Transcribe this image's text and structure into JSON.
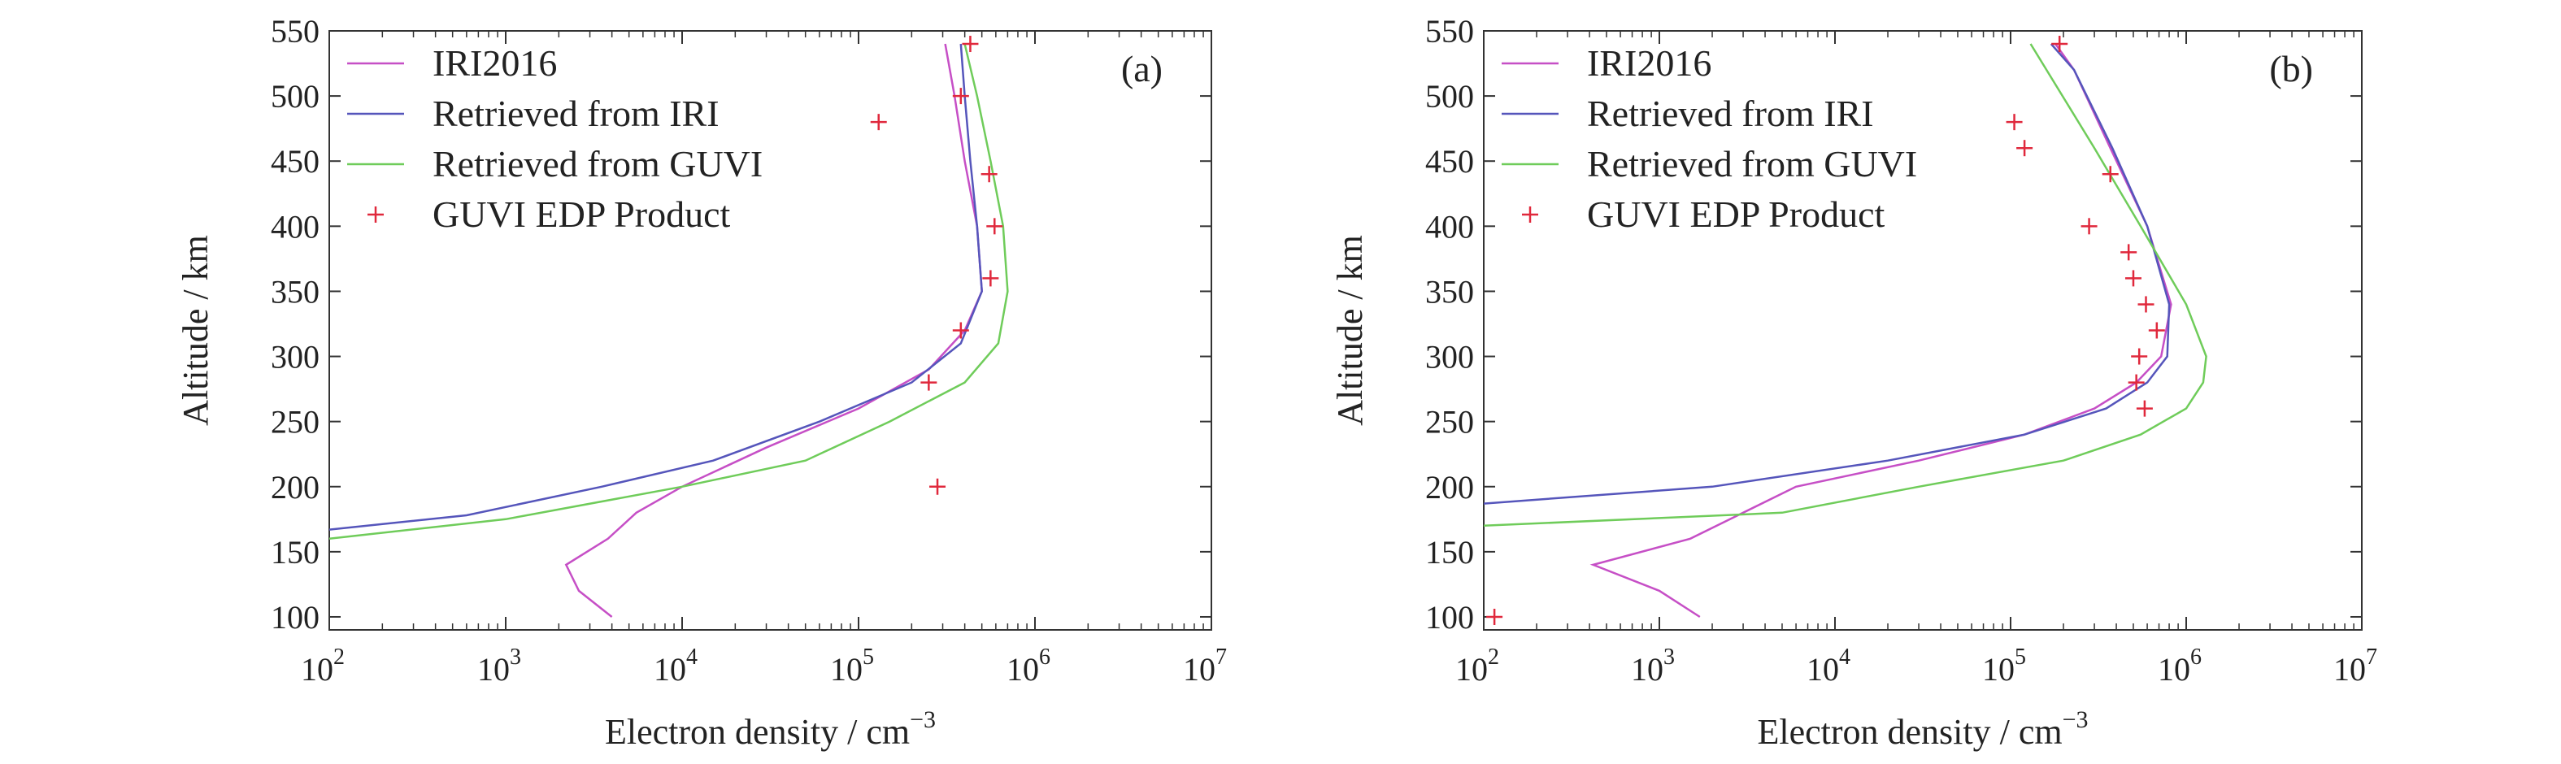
{
  "colors": {
    "iri": "#c64fc6",
    "ret_iri": "#5555bb",
    "ret_guvi": "#6fcc5a",
    "guvi_edp": "#e0283c",
    "axis": "#333333"
  },
  "chart_data": [
    {
      "type": "line",
      "panel_label": "(a)",
      "xlabel": "Electron density / cm",
      "xlabel_sup": "−3",
      "ylabel": "Altitude / km",
      "x_scale": "log",
      "xlim": [
        100,
        10000000
      ],
      "ylim": [
        90,
        550
      ],
      "x_ticks": [
        {
          "base": "10",
          "exp": "2"
        },
        {
          "base": "10",
          "exp": "3"
        },
        {
          "base": "10",
          "exp": "4"
        },
        {
          "base": "10",
          "exp": "5"
        },
        {
          "base": "10",
          "exp": "6"
        },
        {
          "base": "10",
          "exp": "7"
        }
      ],
      "y_ticks": [
        "100",
        "150",
        "200",
        "250",
        "300",
        "350",
        "400",
        "450",
        "500",
        "550"
      ],
      "legend_position": "top-left",
      "series": [
        {
          "name": "IRI2016",
          "key": "iri",
          "marker": "line",
          "points": [
            [
              4000,
              100
            ],
            [
              2600,
              120
            ],
            [
              2200,
              140
            ],
            [
              3800,
              160
            ],
            [
              5500,
              180
            ],
            [
              10000,
              200
            ],
            [
              30000,
              230
            ],
            [
              100000,
              260
            ],
            [
              250000,
              290
            ],
            [
              400000,
              320
            ],
            [
              500000,
              350
            ],
            [
              470000,
              400
            ],
            [
              400000,
              450
            ],
            [
              350000,
              500
            ],
            [
              310000,
              540
            ]
          ]
        },
        {
          "name": "Retrieved from IRI",
          "key": "ret_iri",
          "marker": "line",
          "points": [
            [
              100,
              167
            ],
            [
              600,
              178
            ],
            [
              3500,
              200
            ],
            [
              15000,
              220
            ],
            [
              60000,
              250
            ],
            [
              200000,
              280
            ],
            [
              380000,
              310
            ],
            [
              500000,
              350
            ],
            [
              470000,
              400
            ],
            [
              430000,
              450
            ],
            [
              400000,
              500
            ],
            [
              380000,
              540
            ]
          ]
        },
        {
          "name": "Retrieved from GUVI",
          "key": "ret_guvi",
          "marker": "line",
          "points": [
            [
              100,
              160
            ],
            [
              1000,
              175
            ],
            [
              10000,
              200
            ],
            [
              50000,
              220
            ],
            [
              150000,
              250
            ],
            [
              400000,
              280
            ],
            [
              620000,
              310
            ],
            [
              700000,
              350
            ],
            [
              660000,
              400
            ],
            [
              560000,
              450
            ],
            [
              470000,
              500
            ],
            [
              400000,
              540
            ]
          ]
        },
        {
          "name": "GUVI EDP Product",
          "key": "guvi_edp",
          "marker": "plus",
          "points": [
            [
              280000,
              200
            ],
            [
              250000,
              280
            ],
            [
              380000,
              320
            ],
            [
              560000,
              360
            ],
            [
              590000,
              400
            ],
            [
              550000,
              440
            ],
            [
              130000,
              480
            ],
            [
              380000,
              500
            ],
            [
              430000,
              540
            ]
          ]
        }
      ]
    },
    {
      "type": "line",
      "panel_label": "(b)",
      "xlabel": "Electron density / cm",
      "xlabel_sup": "−3",
      "ylabel": "Altitude / km",
      "x_scale": "log",
      "xlim": [
        100,
        10000000
      ],
      "ylim": [
        90,
        550
      ],
      "x_ticks": [
        {
          "base": "10",
          "exp": "2"
        },
        {
          "base": "10",
          "exp": "3"
        },
        {
          "base": "10",
          "exp": "4"
        },
        {
          "base": "10",
          "exp": "5"
        },
        {
          "base": "10",
          "exp": "6"
        },
        {
          "base": "10",
          "exp": "7"
        }
      ],
      "y_ticks": [
        "100",
        "150",
        "200",
        "250",
        "300",
        "350",
        "400",
        "450",
        "500",
        "550"
      ],
      "legend_position": "top-left",
      "series": [
        {
          "name": "IRI2016",
          "key": "iri",
          "marker": "line",
          "points": [
            [
              1700,
              100
            ],
            [
              1000,
              120
            ],
            [
              420,
              140
            ],
            [
              1500,
              160
            ],
            [
              6000,
              200
            ],
            [
              30000,
              220
            ],
            [
              120000,
              240
            ],
            [
              300000,
              260
            ],
            [
              520000,
              280
            ],
            [
              720000,
              300
            ],
            [
              820000,
              340
            ],
            [
              600000,
              400
            ],
            [
              370000,
              460
            ],
            [
              230000,
              520
            ],
            [
              180000,
              540
            ]
          ]
        },
        {
          "name": "Retrieved from IRI",
          "key": "ret_iri",
          "marker": "line",
          "points": [
            [
              100,
              187
            ],
            [
              2000,
              200
            ],
            [
              20000,
              220
            ],
            [
              120000,
              240
            ],
            [
              350000,
              260
            ],
            [
              600000,
              280
            ],
            [
              780000,
              300
            ],
            [
              800000,
              340
            ],
            [
              600000,
              400
            ],
            [
              380000,
              460
            ],
            [
              230000,
              520
            ],
            [
              170000,
              540
            ]
          ]
        },
        {
          "name": "Retrieved from GUVI",
          "key": "ret_guvi",
          "marker": "line",
          "points": [
            [
              100,
              170
            ],
            [
              5000,
              180
            ],
            [
              30000,
              200
            ],
            [
              200000,
              220
            ],
            [
              550000,
              240
            ],
            [
              1000000,
              260
            ],
            [
              1250000,
              280
            ],
            [
              1300000,
              300
            ],
            [
              1000000,
              340
            ],
            [
              550000,
              400
            ],
            [
              300000,
              460
            ],
            [
              130000,
              540
            ]
          ]
        },
        {
          "name": "GUVI EDP Product",
          "key": "guvi_edp",
          "marker": "plus",
          "points": [
            [
              115,
              100
            ],
            [
              580000,
              260
            ],
            [
              520000,
              280
            ],
            [
              540000,
              300
            ],
            [
              680000,
              320
            ],
            [
              590000,
              340
            ],
            [
              500000,
              360
            ],
            [
              470000,
              380
            ],
            [
              280000,
              400
            ],
            [
              370000,
              440
            ],
            [
              120000,
              460
            ],
            [
              105000,
              480
            ],
            [
              190000,
              540
            ]
          ]
        }
      ]
    }
  ]
}
